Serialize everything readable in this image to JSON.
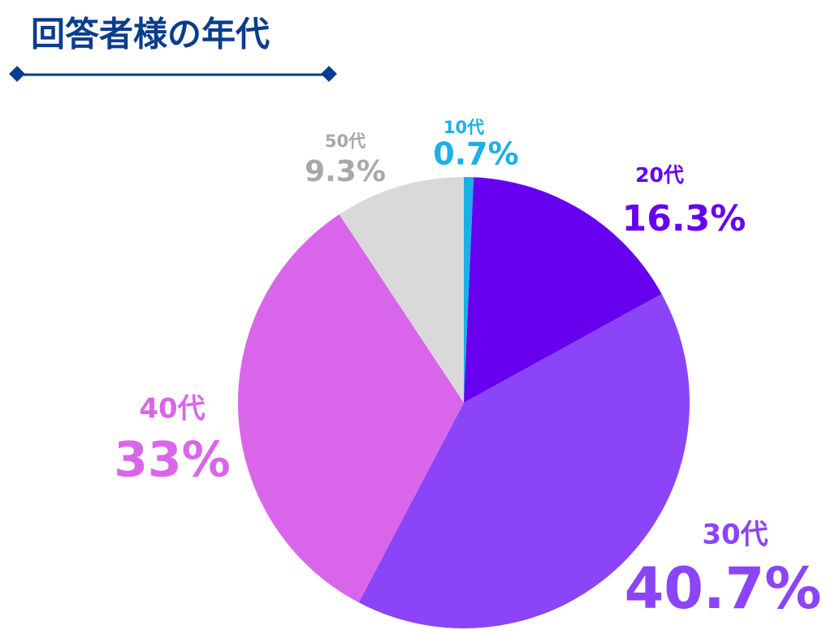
{
  "chart_data": {
    "type": "pie",
    "title": "回答者様の年代",
    "categories": [
      "10代",
      "20代",
      "30代",
      "40代",
      "50代"
    ],
    "values": [
      0.7,
      16.3,
      40.7,
      33,
      9.3
    ],
    "value_labels": [
      "0.7%",
      "16.3%",
      "40.7%",
      "33%",
      "9.3%"
    ],
    "colors": [
      "#1ab0e8",
      "#6600ee",
      "#8b44f7",
      "#d966ea",
      "#d9d9d9"
    ],
    "label_colors": [
      "#1ab0e8",
      "#6600ee",
      "#8b44f7",
      "#d966ea",
      "#a8a8a8"
    ]
  }
}
